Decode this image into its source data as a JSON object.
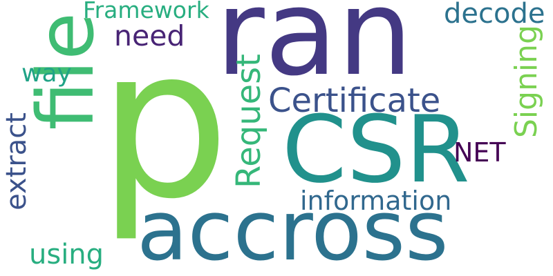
{
  "words": {
    "p": {
      "text": "p",
      "color": "#7ad151"
    },
    "ran": {
      "text": "ran",
      "color": "#443983"
    },
    "CSR": {
      "text": "CSR",
      "color": "#21918c"
    },
    "accross": {
      "text": "accross",
      "color": "#2c728e"
    },
    "file": {
      "text": "file",
      "color": "#3fbc73"
    },
    "Certificate": {
      "text": "Certificate",
      "color": "#3b528b"
    },
    "Request": {
      "text": "Request",
      "color": "#35b779"
    },
    "Signing": {
      "text": "Signing",
      "color": "#7ad151"
    },
    "Framework": {
      "text": "Framework",
      "color": "#28ae80"
    },
    "decode": {
      "text": "decode",
      "color": "#2c728e"
    },
    "need": {
      "text": "need",
      "color": "#482475"
    },
    "way": {
      "text": "way",
      "color": "#20a386"
    },
    "extract": {
      "text": "extract",
      "color": "#3b528b"
    },
    "NET": {
      "text": "NET",
      "color": "#440154"
    },
    "information": {
      "text": "information",
      "color": "#31688e"
    },
    "using": {
      "text": "using",
      "color": "#28ae80"
    }
  }
}
